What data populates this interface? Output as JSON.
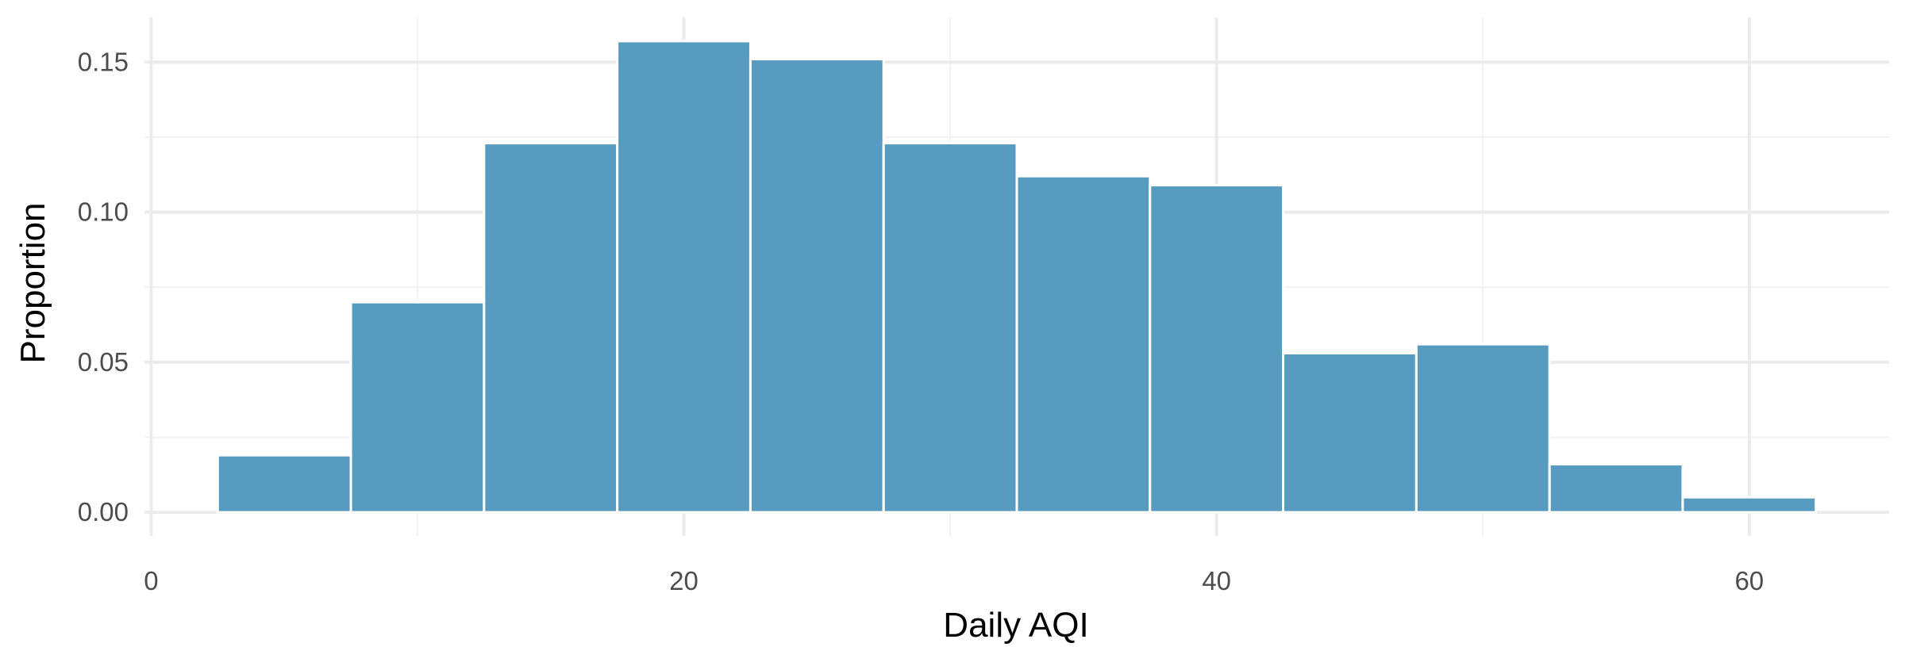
{
  "chart_data": {
    "type": "bar",
    "subtype": "histogram",
    "title": "",
    "xlabel": "Daily AQI",
    "ylabel": "Proportion",
    "bin_width": 5,
    "bins": [
      {
        "x0": 2.5,
        "x1": 7.5,
        "value": 0.019
      },
      {
        "x0": 7.5,
        "x1": 12.5,
        "value": 0.07
      },
      {
        "x0": 12.5,
        "x1": 17.5,
        "value": 0.123
      },
      {
        "x0": 17.5,
        "x1": 22.5,
        "value": 0.157
      },
      {
        "x0": 22.5,
        "x1": 27.5,
        "value": 0.151
      },
      {
        "x0": 27.5,
        "x1": 32.5,
        "value": 0.123
      },
      {
        "x0": 32.5,
        "x1": 37.5,
        "value": 0.112
      },
      {
        "x0": 37.5,
        "x1": 42.5,
        "value": 0.109
      },
      {
        "x0": 42.5,
        "x1": 47.5,
        "value": 0.053
      },
      {
        "x0": 47.5,
        "x1": 52.5,
        "value": 0.056
      },
      {
        "x0": 52.5,
        "x1": 57.5,
        "value": 0.016
      },
      {
        "x0": 57.5,
        "x1": 62.5,
        "value": 0.005
      }
    ],
    "xlim": [
      -0.25,
      65.25
    ],
    "ylim": [
      -0.0079,
      0.1649
    ],
    "x_ticks": [
      {
        "value": 0,
        "label": "0"
      },
      {
        "value": 20,
        "label": "20"
      },
      {
        "value": 40,
        "label": "40"
      },
      {
        "value": 60,
        "label": "60"
      }
    ],
    "x_minor": [
      10,
      30,
      50
    ],
    "y_ticks": [
      {
        "value": 0,
        "label": "0.00"
      },
      {
        "value": 0.05,
        "label": "0.05"
      },
      {
        "value": 0.1,
        "label": "0.10"
      },
      {
        "value": 0.15,
        "label": "0.15"
      }
    ],
    "y_minor": [
      0.025,
      0.075,
      0.125
    ],
    "grid": true,
    "legend": "none",
    "colors": {
      "bar_fill": "#579cc0",
      "bar_outline": "#ffffff",
      "grid_major": "#ebebeb",
      "grid_minor": "#f2f2f2"
    }
  }
}
